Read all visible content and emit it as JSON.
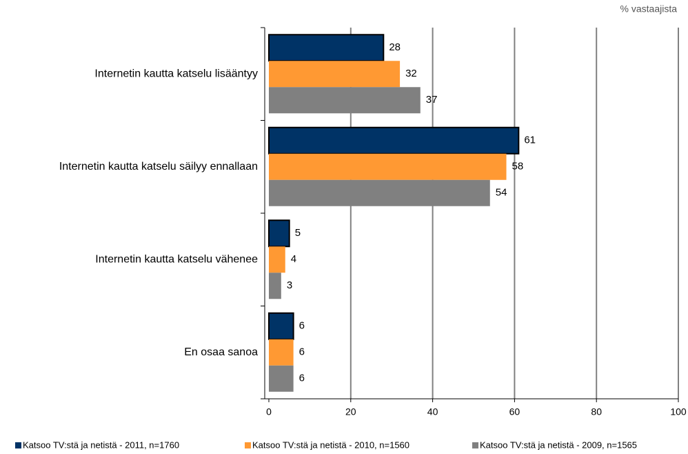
{
  "chart_data": {
    "type": "hbar",
    "unit_label": "% vastaajista",
    "categories": [
      "Internetin kautta katselu lisääntyy",
      "Internetin kautta katselu säilyy ennallaan",
      "Internetin kautta katselu vähenee",
      "En osaa sanoa"
    ],
    "series": [
      {
        "name": "Katsoo TV:stä  ja netistä  - 2011, n=1760",
        "color": "#003366",
        "values": [
          28,
          61,
          5,
          6
        ]
      },
      {
        "name": "Katsoo TV:stä  ja netistä  - 2010, n=1560",
        "color": "#ff9933",
        "values": [
          32,
          58,
          4,
          6
        ]
      },
      {
        "name": "Katsoo TV:stä  ja netistä  - 2009, n=1565",
        "color": "#808080",
        "values": [
          37,
          54,
          3,
          6
        ]
      }
    ],
    "xlim": [
      0,
      100
    ],
    "xticks": [
      0,
      20,
      40,
      60,
      80,
      100
    ],
    "grid": true,
    "legend": "bottom"
  }
}
